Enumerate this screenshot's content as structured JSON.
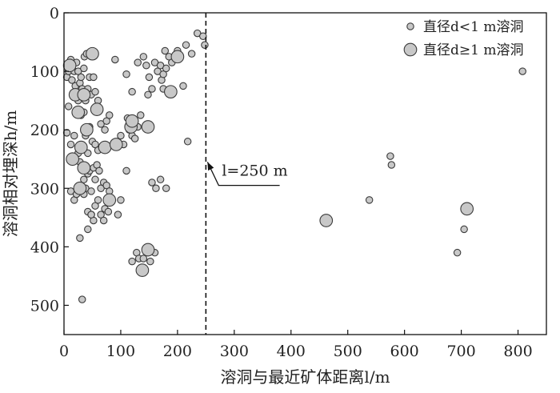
{
  "chart_data": {
    "type": "scatter",
    "xlabel": "溶洞与最近矿体距离l/m",
    "ylabel": "溶洞相对埋深h/m",
    "xlim": [
      0,
      850
    ],
    "ylim": [
      0,
      550
    ],
    "y_inverted": true,
    "x_ticks": [
      0,
      100,
      200,
      300,
      400,
      500,
      600,
      700,
      800
    ],
    "y_ticks": [
      0,
      100,
      200,
      300,
      400,
      500
    ],
    "grid": false,
    "legend_position": "top-right",
    "colors": {
      "marker_fill": "#c8c8c8",
      "marker_stroke": "#3a3a3a",
      "line": "#111111"
    },
    "series": [
      {
        "name": "直径d<1 m溶洞",
        "marker_size": "small",
        "points": [
          [
            5,
            110
          ],
          [
            8,
            100
          ],
          [
            10,
            95
          ],
          [
            12,
            80
          ],
          [
            14,
            115
          ],
          [
            18,
            100
          ],
          [
            20,
            125
          ],
          [
            22,
            85
          ],
          [
            25,
            100
          ],
          [
            28,
            120
          ],
          [
            30,
            110
          ],
          [
            32,
            130
          ],
          [
            35,
            95
          ],
          [
            36,
            75
          ],
          [
            38,
            150
          ],
          [
            40,
            70
          ],
          [
            42,
            130
          ],
          [
            45,
            110
          ],
          [
            48,
            140
          ],
          [
            52,
            110
          ],
          [
            55,
            135
          ],
          [
            58,
            160
          ],
          [
            60,
            150
          ],
          [
            25,
            150
          ],
          [
            30,
            175
          ],
          [
            35,
            170
          ],
          [
            38,
            210
          ],
          [
            42,
            240
          ],
          [
            45,
            195
          ],
          [
            50,
            220
          ],
          [
            55,
            225
          ],
          [
            60,
            235
          ],
          [
            65,
            190
          ],
          [
            72,
            200
          ],
          [
            75,
            185
          ],
          [
            80,
            175
          ],
          [
            90,
            80
          ],
          [
            8,
            160
          ],
          [
            5,
            205
          ],
          [
            12,
            225
          ],
          [
            15,
            245
          ],
          [
            18,
            210
          ],
          [
            25,
            240
          ],
          [
            28,
            255
          ],
          [
            30,
            265
          ],
          [
            35,
            285
          ],
          [
            38,
            300
          ],
          [
            42,
            275
          ],
          [
            45,
            270
          ],
          [
            48,
            305
          ],
          [
            52,
            265
          ],
          [
            55,
            285
          ],
          [
            58,
            260
          ],
          [
            62,
            270
          ],
          [
            65,
            300
          ],
          [
            70,
            290
          ],
          [
            75,
            295
          ],
          [
            80,
            305
          ],
          [
            12,
            305
          ],
          [
            18,
            320
          ],
          [
            22,
            310
          ],
          [
            28,
            300
          ],
          [
            35,
            310
          ],
          [
            42,
            340
          ],
          [
            48,
            345
          ],
          [
            52,
            355
          ],
          [
            55,
            330
          ],
          [
            60,
            320
          ],
          [
            65,
            345
          ],
          [
            70,
            355
          ],
          [
            72,
            335
          ],
          [
            78,
            340
          ],
          [
            95,
            345
          ],
          [
            100,
            320
          ],
          [
            28,
            385
          ],
          [
            42,
            370
          ],
          [
            48,
            345
          ],
          [
            110,
            105
          ],
          [
            120,
            135
          ],
          [
            130,
            85
          ],
          [
            140,
            75
          ],
          [
            145,
            90
          ],
          [
            148,
            140
          ],
          [
            150,
            110
          ],
          [
            155,
            130
          ],
          [
            160,
            85
          ],
          [
            165,
            100
          ],
          [
            170,
            90
          ],
          [
            172,
            115
          ],
          [
            175,
            105
          ],
          [
            178,
            65
          ],
          [
            180,
            95
          ],
          [
            185,
            75
          ],
          [
            190,
            85
          ],
          [
            200,
            65
          ],
          [
            210,
            125
          ],
          [
            215,
            55
          ],
          [
            225,
            70
          ],
          [
            235,
            35
          ],
          [
            245,
            40
          ],
          [
            248,
            55
          ],
          [
            112,
            180
          ],
          [
            115,
            200
          ],
          [
            120,
            210
          ],
          [
            125,
            215
          ],
          [
            130,
            195
          ],
          [
            135,
            175
          ],
          [
            100,
            210
          ],
          [
            105,
            225
          ],
          [
            110,
            270
          ],
          [
            120,
            185
          ],
          [
            155,
            290
          ],
          [
            162,
            300
          ],
          [
            170,
            285
          ],
          [
            180,
            300
          ],
          [
            175,
            130
          ],
          [
            218,
            220
          ],
          [
            120,
            425
          ],
          [
            128,
            410
          ],
          [
            132,
            420
          ],
          [
            140,
            420
          ],
          [
            148,
            410
          ],
          [
            152,
            425
          ],
          [
            160,
            410
          ],
          [
            32,
            490
          ],
          [
            538,
            320
          ],
          [
            575,
            245
          ],
          [
            577,
            260
          ],
          [
            705,
            370
          ],
          [
            693,
            410
          ],
          [
            808,
            100
          ]
        ]
      },
      {
        "name": "直径d≥1 m溶洞",
        "marker_size": "large",
        "points": [
          [
            10,
            90
          ],
          [
            20,
            140
          ],
          [
            25,
            170
          ],
          [
            30,
            230
          ],
          [
            35,
            140
          ],
          [
            40,
            200
          ],
          [
            15,
            250
          ],
          [
            35,
            265
          ],
          [
            28,
            300
          ],
          [
            50,
            70
          ],
          [
            58,
            165
          ],
          [
            72,
            230
          ],
          [
            80,
            320
          ],
          [
            92,
            225
          ],
          [
            118,
            195
          ],
          [
            148,
            195
          ],
          [
            120,
            185
          ],
          [
            188,
            135
          ],
          [
            200,
            75
          ],
          [
            138,
            440
          ],
          [
            148,
            405
          ],
          [
            462,
            355
          ],
          [
            710,
            335
          ]
        ]
      }
    ],
    "annotations": [
      {
        "text": "l=250 m",
        "vline_x": 250,
        "vline_style": "dashed",
        "arrow_to": [
          250,
          255
        ],
        "arrow_from": [
          380,
          295
        ]
      }
    ]
  }
}
